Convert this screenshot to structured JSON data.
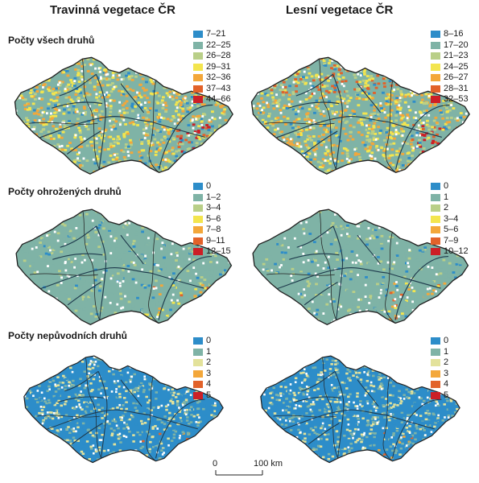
{
  "columns": {
    "left": "Travinná vegetace ČR",
    "right": "Lesní vegetace ČR"
  },
  "rows": [
    {
      "label": "Počty všech druhů",
      "left_legend": {
        "classes": [
          "7–21",
          "22–25",
          "26–28",
          "29–31",
          "32–36",
          "37–43",
          "44–66"
        ],
        "colors": [
          "#2d8dc9",
          "#7fb3a6",
          "#b9cf88",
          "#f3e54e",
          "#f3a73a",
          "#e2622a",
          "#cc1f26"
        ]
      },
      "right_legend": {
        "classes": [
          "8–16",
          "17–20",
          "21–23",
          "24–25",
          "26–27",
          "28–31",
          "32–53"
        ],
        "colors": [
          "#2d8dc9",
          "#7fb3a6",
          "#b9cf88",
          "#f3e54e",
          "#f3a73a",
          "#e2622a",
          "#cc1f26"
        ]
      }
    },
    {
      "label": "Počty ohrožených druhů",
      "left_legend": {
        "classes": [
          "0",
          "1–2",
          "3–4",
          "5–6",
          "7–8",
          "9–11",
          "12–15"
        ],
        "colors": [
          "#2d8dc9",
          "#7fb3a6",
          "#b9cf88",
          "#f3e54e",
          "#f3a73a",
          "#e2622a",
          "#cc1f26"
        ]
      },
      "right_legend": {
        "classes": [
          "0",
          "1",
          "2",
          "3–4",
          "5–6",
          "7–9",
          "10–12"
        ],
        "colors": [
          "#2d8dc9",
          "#7fb3a6",
          "#b9cf88",
          "#f3e54e",
          "#f3a73a",
          "#e2622a",
          "#cc1f26"
        ]
      }
    },
    {
      "label": "Počty nepůvodních druhů",
      "left_legend": {
        "classes": [
          "0",
          "1",
          "2",
          "3",
          "4",
          "5"
        ],
        "colors": [
          "#2d8dc9",
          "#7fb3a6",
          "#e3e29b",
          "#f3a73a",
          "#e2622a",
          "#cc1f26"
        ]
      },
      "right_legend": {
        "classes": [
          "0",
          "1",
          "2",
          "3",
          "4",
          "5"
        ],
        "colors": [
          "#2d8dc9",
          "#7fb3a6",
          "#e3e29b",
          "#f3a73a",
          "#e2622a",
          "#cc1f26"
        ]
      }
    }
  ],
  "scale": {
    "start": "0",
    "end": "100 km"
  },
  "colors": {
    "border": "#222222",
    "river": "#1f3b4d"
  }
}
